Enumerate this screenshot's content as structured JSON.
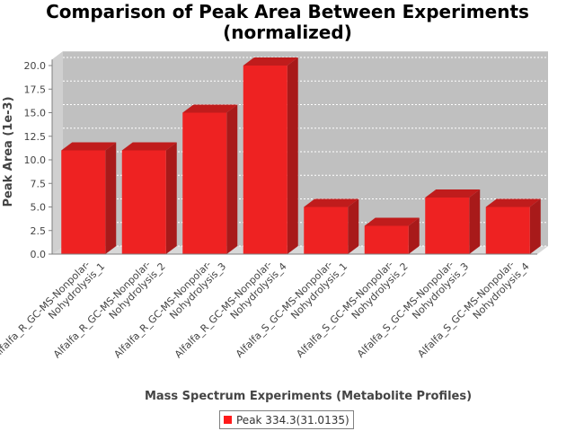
{
  "chart_data": {
    "type": "bar",
    "title": "Comparison of Peak Area Between Experiments",
    "subtitle": "(normalized)",
    "xlabel": "Mass Spectrum Experiments (Metabolite Profiles)",
    "ylabel": "Peak Area (1e-3)",
    "ylim": [
      0,
      21.5
    ],
    "yticks": [
      "0.0",
      "2.5",
      "5.0",
      "7.5",
      "10.0",
      "12.5",
      "15.0",
      "17.5",
      "20.0"
    ],
    "grid": true,
    "legend_position": "bottom",
    "categories": [
      [
        "Alfalfa_R_GC-MS-Nonpolar-",
        "Nohydrolysis_1"
      ],
      [
        "Alfalfa_R_GC-MS-Nonpolar-",
        "Nohydrolysis_2"
      ],
      [
        "Alfalfa_R_GC-MS-Nonpolar-",
        "Nohydrolysis_3"
      ],
      [
        "Alfalfa_R_GC-MS-Nonpolar-",
        "Nohydrolysis_4"
      ],
      [
        "Alfalfa_S_GC-MS-Nonpolar-",
        "Nohydrolysis_1"
      ],
      [
        "Alfalfa_S_GC-MS-Nonpolar-",
        "Nohydrolysis_2"
      ],
      [
        "Alfalfa_S_GC-MS-Nonpolar-",
        "Nohydrolysis_3"
      ],
      [
        "Alfalfa_S_GC-MS-Nonpolar-",
        "Nohydrolysis_4"
      ]
    ],
    "series": [
      {
        "name": "Peak 334.3(31.0135)",
        "values": [
          11.0,
          11.0,
          15.0,
          20.0,
          5.0,
          3.0,
          6.0,
          5.0
        ]
      }
    ],
    "colors": {
      "bar_front": "#ee2222",
      "bar_side": "#a81a1a",
      "bar_top": "#c01c1c",
      "plot_bg": "#c0c0c0",
      "grid": "#ffffff",
      "legend_swatch": "#ff1a1a"
    }
  }
}
